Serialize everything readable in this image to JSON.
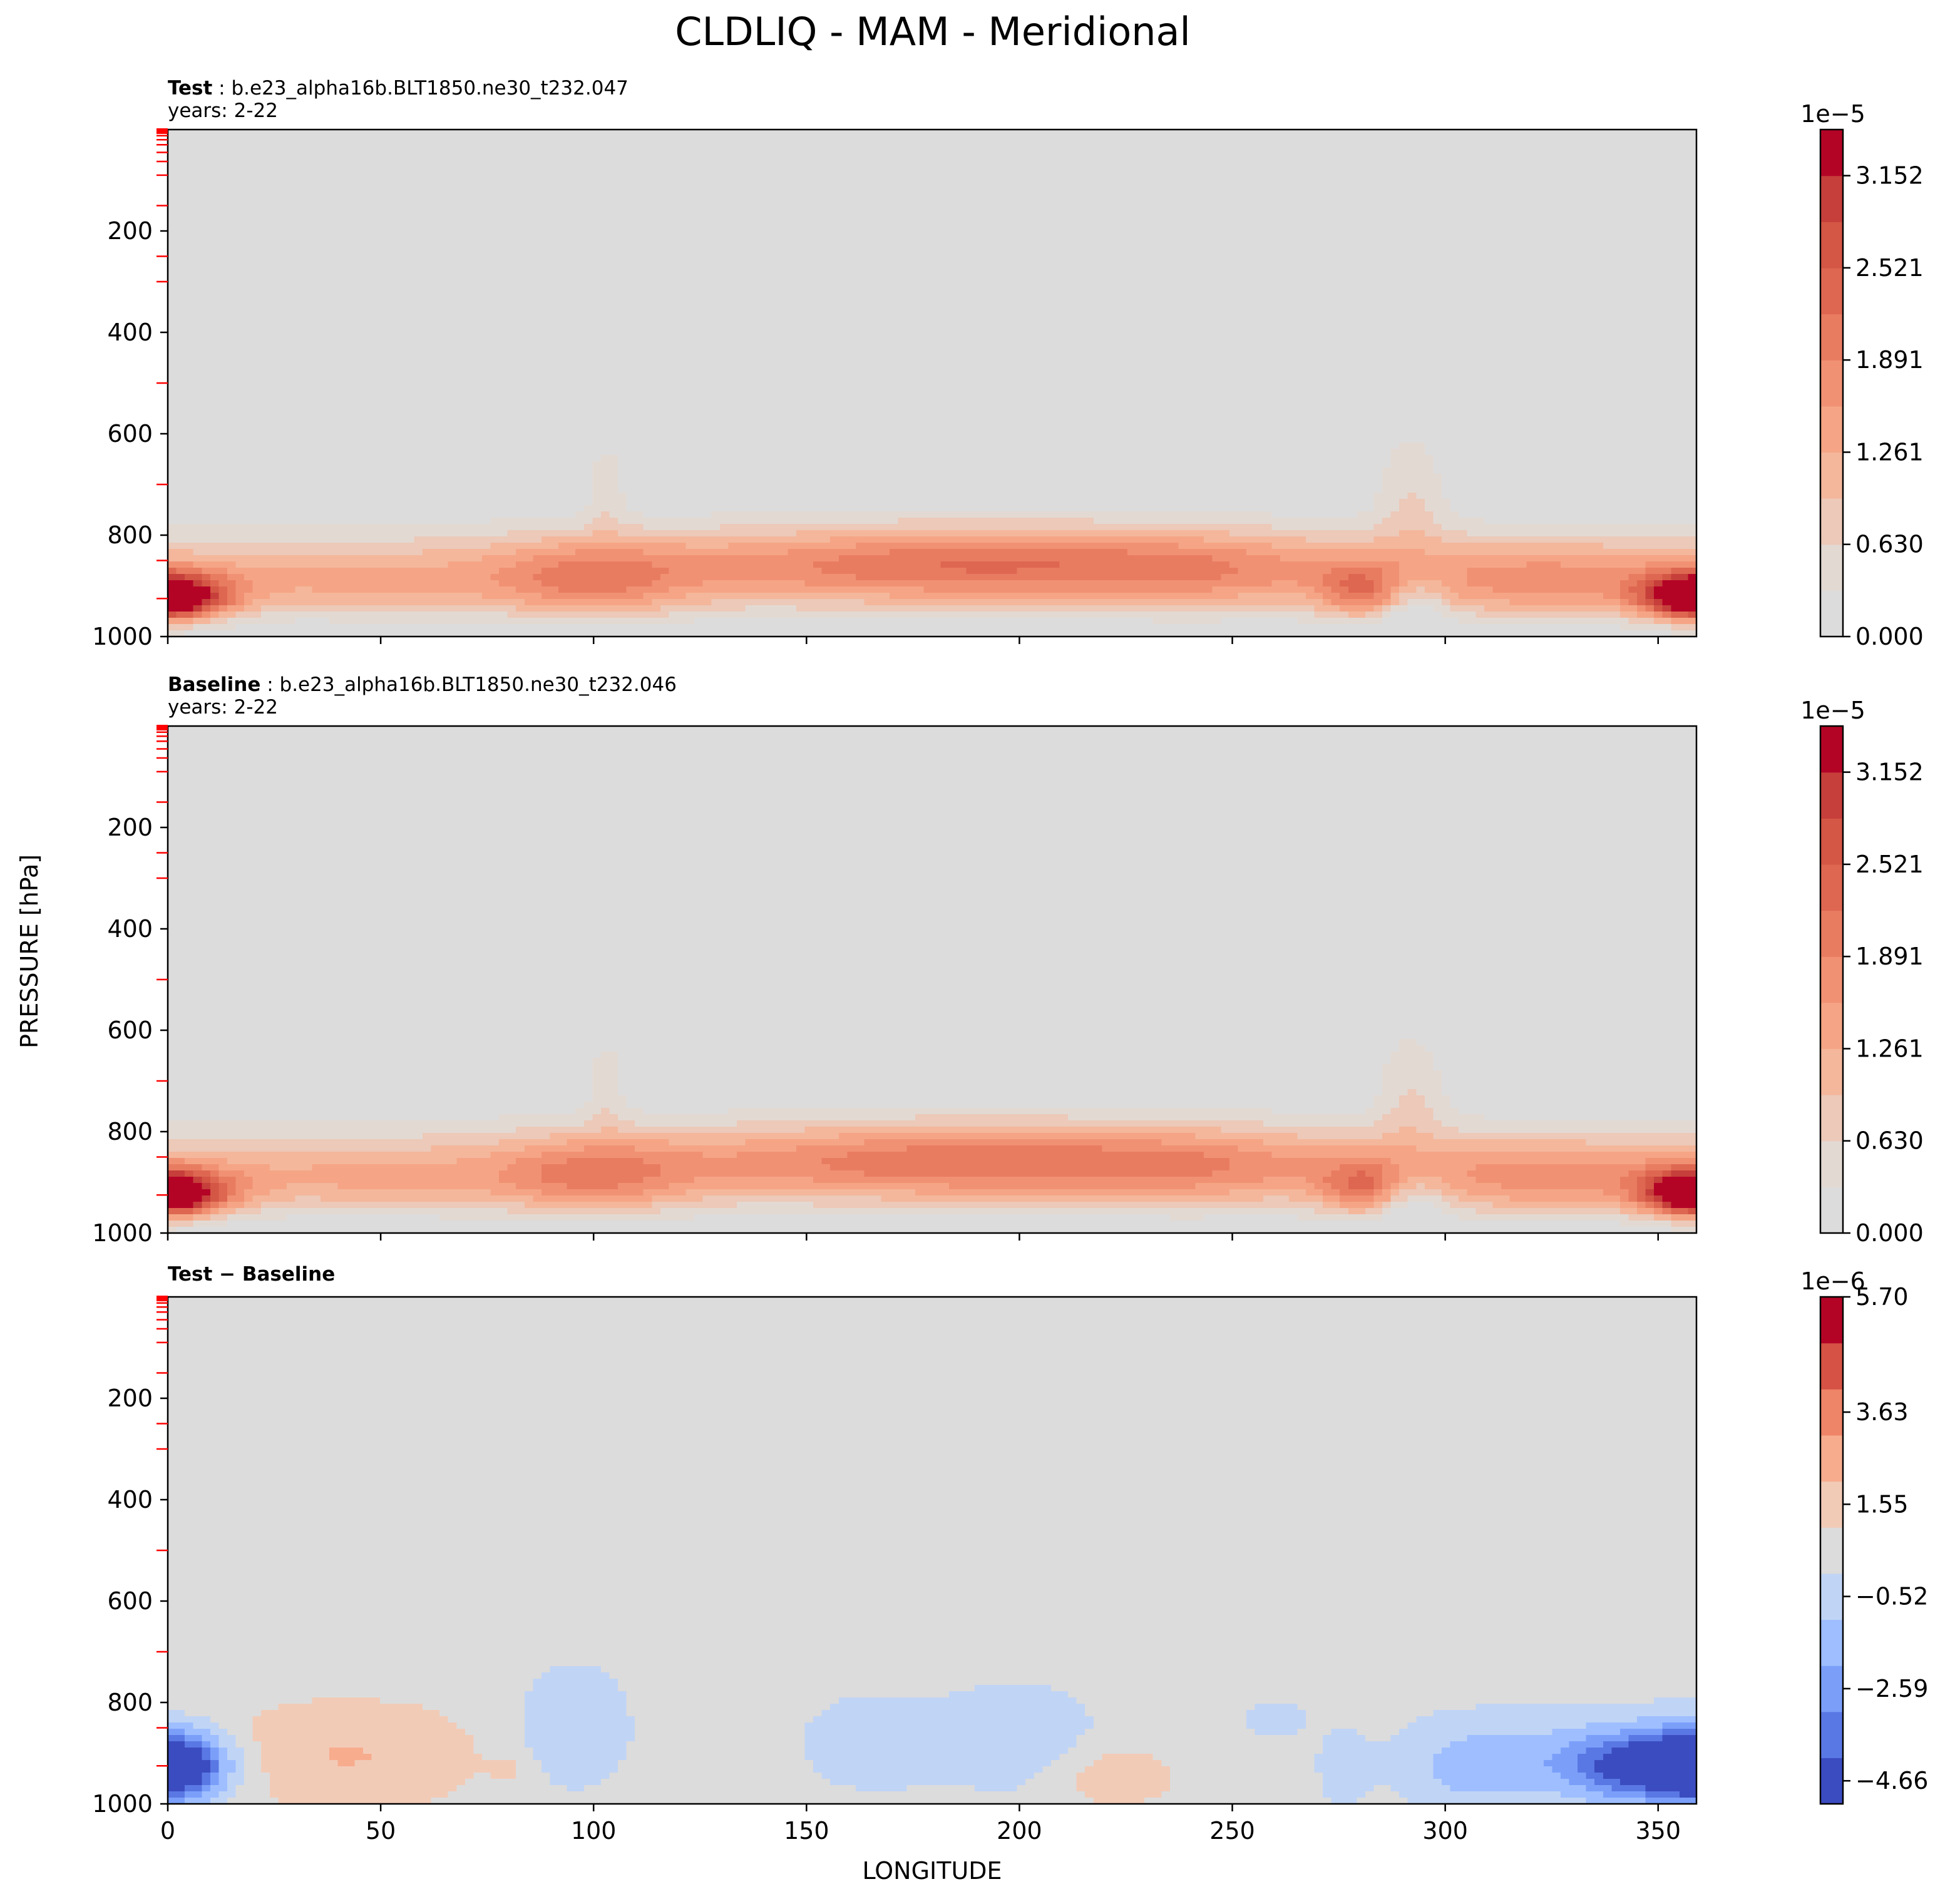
{
  "chart_data": {
    "type": "heatmap",
    "title": "CLDLIQ - MAM - Meridional",
    "xlabel": "LONGITUDE",
    "ylabel": "PRESSURE [hPa]",
    "xlim": [
      0,
      359
    ],
    "ylim": [
      1000,
      0
    ],
    "x_ticks": [
      "0",
      "50",
      "100",
      "150",
      "200",
      "250",
      "300",
      "350"
    ],
    "y_ticks": [
      "200",
      "400",
      "600",
      "800",
      "1000"
    ],
    "panels": [
      {
        "title_bold": "Test",
        "title_rest": " : b.e23_alpha16b.BLT1850.ne30_t232.047",
        "subtitle": "years: 2-22",
        "colormap": "Reds",
        "colorbar_exponent": "1e−5",
        "colorbar_ticks": [
          "0.000",
          "0.630",
          "1.261",
          "1.891",
          "2.521",
          "3.152"
        ],
        "colorbar_levels": 11,
        "colorbar_colors": [
          "#dcdcdc",
          "#e3d9d3",
          "#ecc9b8",
          "#f4b79c",
          "#f5a585",
          "#f19174",
          "#e87c61",
          "#de6751",
          "#d45645",
          "#c63f3b",
          "#b40426"
        ],
        "field": "test"
      },
      {
        "title_bold": "Baseline",
        "title_rest": " : b.e23_alpha16b.BLT1850.ne30_t232.046",
        "subtitle": "years: 2-22",
        "colormap": "Reds",
        "colorbar_exponent": "1e−5",
        "colorbar_ticks": [
          "0.000",
          "0.630",
          "1.261",
          "1.891",
          "2.521",
          "3.152"
        ],
        "colorbar_levels": 11,
        "colorbar_colors": [
          "#dcdcdc",
          "#e3d9d3",
          "#ecc9b8",
          "#f4b79c",
          "#f5a585",
          "#f19174",
          "#e87c61",
          "#de6751",
          "#d45645",
          "#c63f3b",
          "#b40426"
        ],
        "field": "baseline"
      },
      {
        "title_bold": "Test − Baseline",
        "title_rest": "",
        "subtitle": "",
        "colormap": "coolwarm",
        "colorbar_exponent": "1e−6",
        "colorbar_ticks": [
          "−4.66",
          "−2.59",
          "−0.52",
          "1.55",
          "3.63",
          "5.70"
        ],
        "colorbar_levels": 11,
        "colorbar_colors": [
          "#3b4cc0",
          "#5a78e4",
          "#7b9ff9",
          "#9ebeff",
          "#c0d4f5",
          "#dcdcdc",
          "#f2cbb7",
          "#f7ac8e",
          "#ee8468",
          "#d65244",
          "#b40426"
        ],
        "field": "diff"
      }
    ],
    "test_features": [
      {
        "lon": 4,
        "p": 925,
        "value": 3.3e-05
      },
      {
        "lon": 190,
        "p": 850,
        "value": 2.7e-05
      },
      {
        "lon": 100,
        "p": 900,
        "value": 2.4e-05
      },
      {
        "lon": 325,
        "p": 910,
        "value": 2.2e-05
      },
      {
        "lon": 280,
        "p": 920,
        "value": 2.3e-05
      },
      {
        "lon": 45,
        "p": 910,
        "value": 1.9e-05
      }
    ],
    "diff_features": [
      {
        "lon": 4,
        "p": 925,
        "value": -4.7e-06
      },
      {
        "lon": 352,
        "p": 925,
        "value": -5.2e-06
      },
      {
        "lon": 42,
        "p": 920,
        "value": 1.5e-06
      },
      {
        "lon": 220,
        "p": 940,
        "value": 1.2e-06
      },
      {
        "lon": 95,
        "p": 840,
        "value": -1e-06
      },
      {
        "lon": 200,
        "p": 860,
        "value": -1e-06
      }
    ]
  }
}
